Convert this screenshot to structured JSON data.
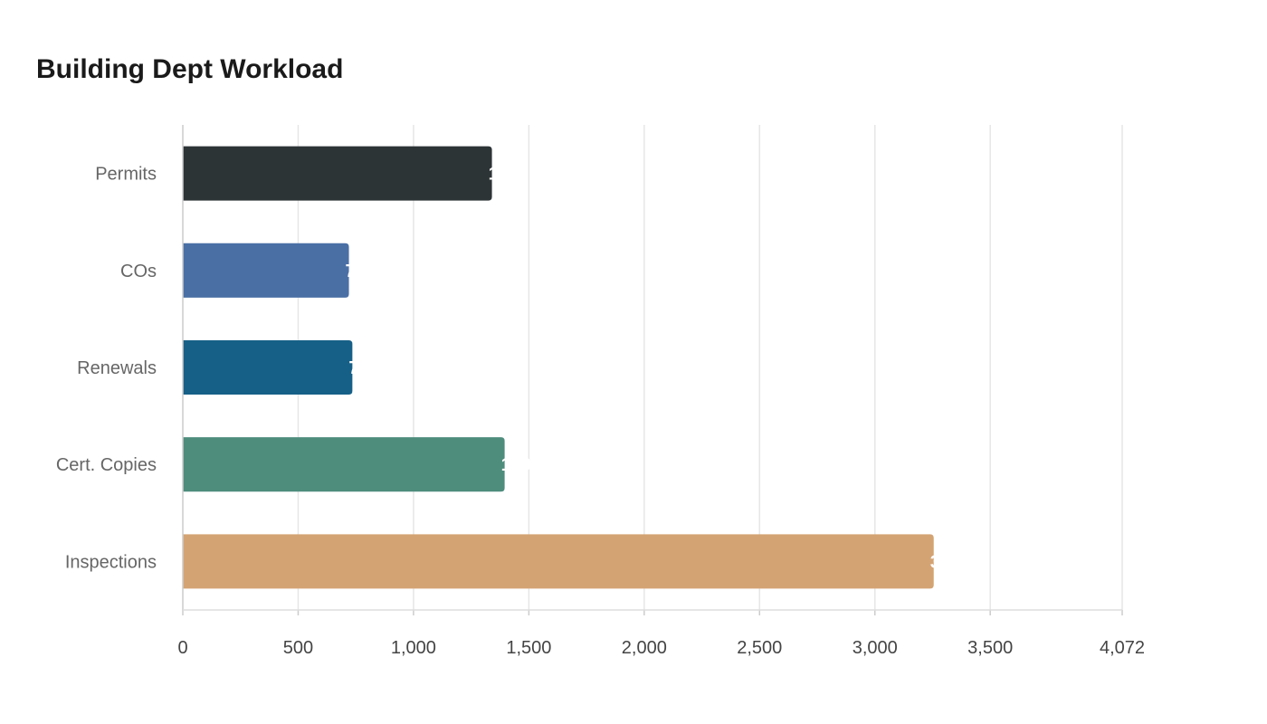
{
  "chart_data": {
    "type": "bar",
    "orientation": "horizontal",
    "title": "Building Dept Workload",
    "categories": [
      "Permits",
      "COs",
      "Renewals",
      "Cert. Copies",
      "Inspections"
    ],
    "values": [
      1340,
      720,
      735,
      1395,
      3255
    ],
    "xlim": [
      0,
      4072
    ],
    "x_ticks": [
      0,
      500,
      1000,
      1500,
      2000,
      2500,
      3000,
      3500,
      4072
    ],
    "x_tick_labels": [
      "0",
      "500",
      "1,000",
      "1,500",
      "2,000",
      "2,500",
      "3,000",
      "3,500",
      "4,072"
    ],
    "colors": [
      "#2d3436",
      "#4a6fa5",
      "#166088",
      "#4e8d7c",
      "#d4a373"
    ],
    "grid": true,
    "xlabel": "",
    "ylabel": ""
  }
}
